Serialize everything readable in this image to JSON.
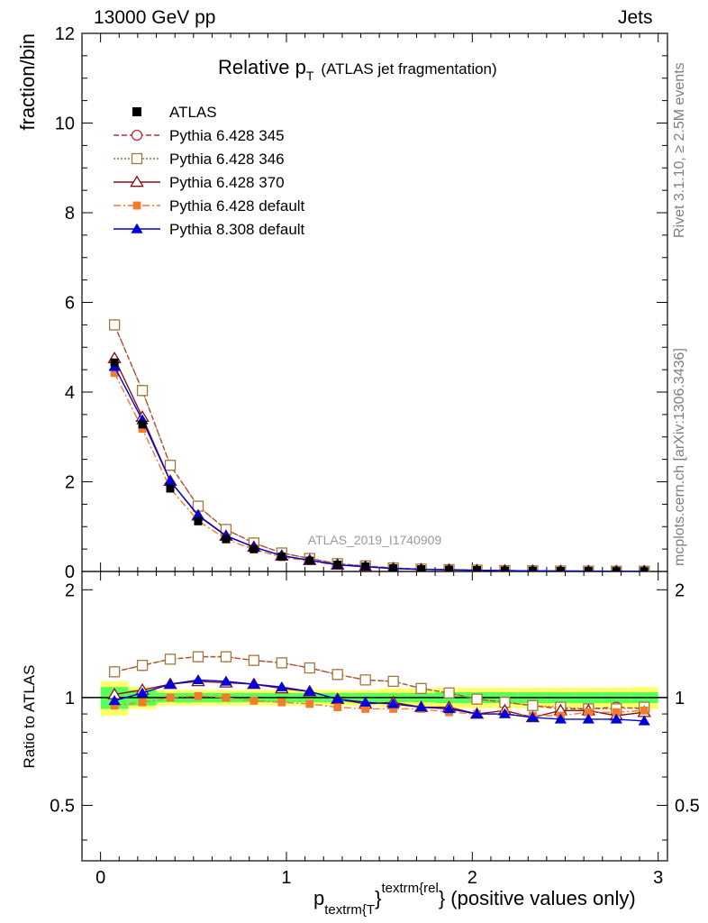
{
  "header": {
    "left": "13000 GeV pp",
    "right": "Jets"
  },
  "side": {
    "rivet": "Rivet 3.1.10, ≥ 2.5M events",
    "mcplots": "mcplots.cern.ch [arXiv:1306.3436]"
  },
  "chart_data": {
    "type": "line",
    "title_main": "Relative p",
    "title_sub": "T",
    "title_rest": "(ATLAS jet fragmentation)",
    "watermark": "ATLAS_2019_I1740909",
    "ylabel": "fraction/bin",
    "ratio_ylabel": "Ratio to ATLAS",
    "xlabel_p": "p",
    "xlabel_sub": "textrm{T",
    "xlabel_brace": "}",
    "xlabel_sup": "textrm{rel",
    "xlabel_rest": "} (positive values only)",
    "xlim": [
      -0.1,
      3.05
    ],
    "ylim": [
      0,
      12
    ],
    "ratio_ylim": [
      0.35,
      2.25
    ],
    "x_ticks": [
      "0",
      "1",
      "2",
      "3"
    ],
    "y_ticks": [
      "0",
      "2",
      "4",
      "6",
      "8",
      "10",
      "12"
    ],
    "ratio_ticks": [
      "0.5",
      "1",
      "2"
    ],
    "x": [
      0.075,
      0.225,
      0.375,
      0.525,
      0.675,
      0.825,
      0.975,
      1.125,
      1.275,
      1.425,
      1.575,
      1.725,
      1.875,
      2.025,
      2.175,
      2.325,
      2.475,
      2.625,
      2.775,
      2.925
    ],
    "data": {
      "name": "ATLAS",
      "values": [
        4.66,
        3.28,
        1.85,
        1.12,
        0.72,
        0.5,
        0.33,
        0.24,
        0.15,
        0.11,
        0.07,
        0.05,
        0.04,
        0.03,
        0.02,
        0.015,
        0.01,
        0.008,
        0.006,
        0.005
      ],
      "band_inner": [
        0.07,
        0.05,
        0.03,
        0.03,
        0.03,
        0.03,
        0.03,
        0.03,
        0.03,
        0.03,
        0.03,
        0.03,
        0.035,
        0.035,
        0.035,
        0.035,
        0.035,
        0.035,
        0.035,
        0.035
      ],
      "band_outer": [
        0.11,
        0.07,
        0.05,
        0.05,
        0.05,
        0.05,
        0.05,
        0.05,
        0.05,
        0.05,
        0.06,
        0.06,
        0.065,
        0.065,
        0.065,
        0.065,
        0.065,
        0.065,
        0.065,
        0.07
      ]
    },
    "series": [
      {
        "name": "Pythia 6.428 345",
        "color": "#b0333b",
        "dash": "6,3",
        "marker": "circle-open",
        "ratio": [
          1.18,
          1.23,
          1.28,
          1.3,
          1.3,
          1.27,
          1.25,
          1.21,
          1.16,
          1.12,
          1.11,
          1.06,
          1.03,
          0.99,
          0.97,
          0.95,
          0.93,
          0.93,
          0.94,
          0.93
        ]
      },
      {
        "name": "Pythia 6.428 346",
        "color": "#a07a3a",
        "dash": "2,2",
        "marker": "square-open",
        "ratio": [
          1.18,
          1.23,
          1.28,
          1.3,
          1.3,
          1.27,
          1.25,
          1.21,
          1.16,
          1.12,
          1.11,
          1.06,
          1.03,
          0.99,
          0.97,
          0.95,
          0.94,
          0.93,
          0.93,
          0.94
        ]
      },
      {
        "name": "Pythia 6.428 370",
        "color": "#8b1010",
        "dash": "",
        "marker": "triangle-open",
        "ratio": [
          1.02,
          1.05,
          1.09,
          1.11,
          1.1,
          1.09,
          1.06,
          1.04,
          0.99,
          0.96,
          0.97,
          0.94,
          0.94,
          0.9,
          0.92,
          0.88,
          0.92,
          0.92,
          0.89,
          0.91
        ]
      },
      {
        "name": "Pythia 6.428 default",
        "color": "#f47b2b",
        "dash": "8,3,2,3",
        "marker": "square-filled",
        "ratio": [
          0.95,
          0.97,
          1.0,
          1.01,
          1.0,
          0.98,
          0.97,
          0.96,
          0.94,
          0.93,
          0.93,
          0.93,
          0.91,
          0.9,
          0.9,
          0.89,
          0.89,
          0.91,
          0.91,
          0.92
        ]
      },
      {
        "name": "Pythia 8.308 default",
        "color": "#0000dd",
        "dash": "",
        "marker": "triangle-filled",
        "ratio": [
          0.98,
          1.03,
          1.09,
          1.12,
          1.11,
          1.09,
          1.07,
          1.04,
          0.99,
          0.97,
          0.96,
          0.94,
          0.93,
          0.9,
          0.9,
          0.88,
          0.87,
          0.87,
          0.87,
          0.86
        ]
      }
    ],
    "legend_position": "top-left",
    "colors": {
      "data": "#000000",
      "band_inner": "#59ff59",
      "band_outer": "#ffff66"
    }
  }
}
